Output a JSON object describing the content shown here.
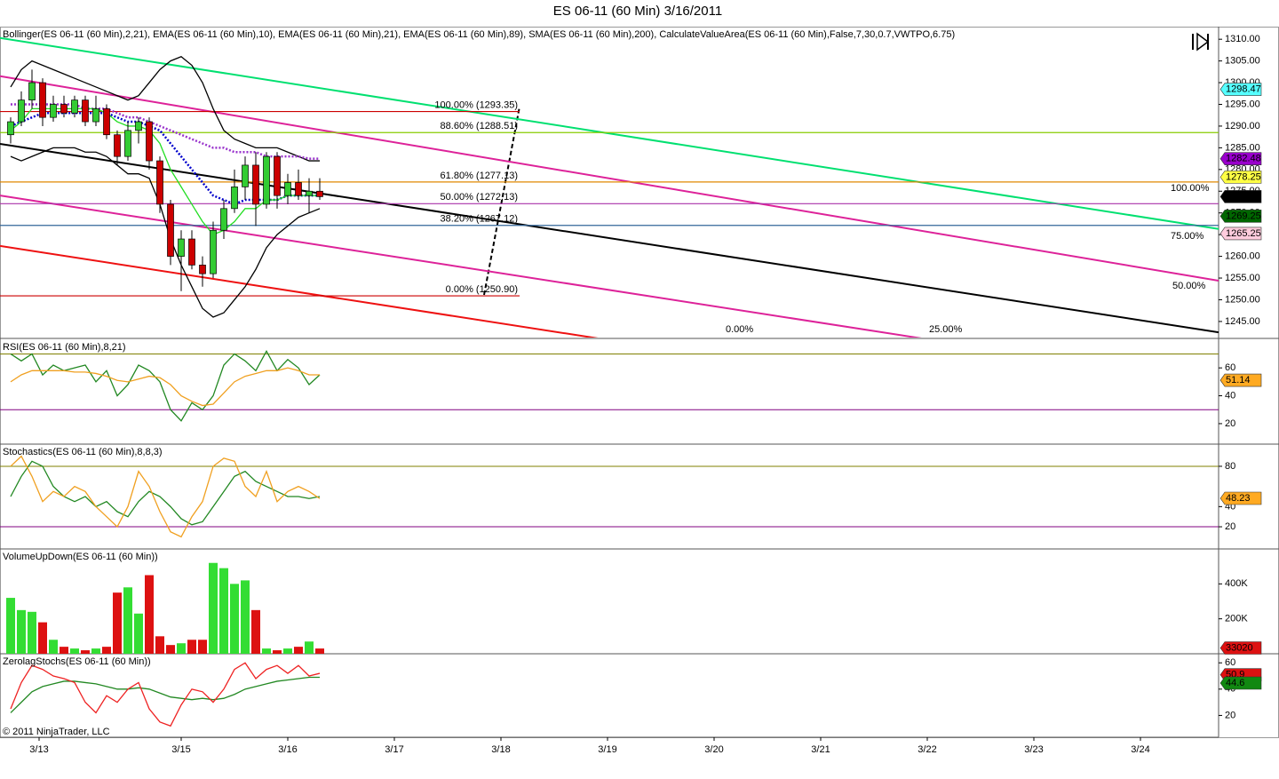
{
  "chart_data": [
    {
      "type": "candlestick",
      "title": "ES 06-11 (60 Min)  3/16/2011",
      "label": "Bollinger(ES 06-11 (60 Min),2,21), EMA(ES 06-11 (60 Min),10), EMA(ES 06-11 (60 Min),21), EMA(ES 06-11 (60 Min),89), SMA(ES 06-11 (60 Min),200), CalculateValueArea(ES 06-11 (60 Min),False,7,30,0.7,VWTPO,6.75)",
      "ylim": [
        1241.3,
        1312.9
      ],
      "yticks": [
        {
          "value": 1245,
          "label": "1245.00"
        },
        {
          "value": 1250,
          "label": "1250.00"
        },
        {
          "value": 1255,
          "label": "1255.00"
        },
        {
          "value": 1260,
          "label": "1260.00"
        },
        {
          "value": 1265,
          "label": "1265.00"
        },
        {
          "value": 1270,
          "label": "1270.00"
        },
        {
          "value": 1275,
          "label": "1275.00"
        },
        {
          "value": 1280,
          "label": "1280.00"
        },
        {
          "value": 1285,
          "label": "1285.00"
        },
        {
          "value": 1290,
          "label": "1290.00"
        },
        {
          "value": 1295,
          "label": "1295.00"
        },
        {
          "value": 1300,
          "label": "1300.00"
        },
        {
          "value": 1305,
          "label": "1305.00"
        },
        {
          "value": 1310,
          "label": "1310.00"
        }
      ],
      "up_color": "#33cc33",
      "down_color": "#cc0000",
      "open": [
        1288,
        1291,
        1296,
        1300,
        1292,
        1295,
        1293,
        1296,
        1291,
        1294,
        1288,
        1283,
        1289,
        1291,
        1282,
        1272,
        1260,
        1264,
        1258,
        1256,
        1266,
        1271,
        1276,
        1281,
        1272,
        1283,
        1274,
        1277,
        1274,
        1275
      ],
      "high": [
        1292,
        1298,
        1303,
        1301,
        1297,
        1297,
        1297,
        1297,
        1297,
        1295,
        1289,
        1291,
        1292,
        1292,
        1283,
        1273,
        1266,
        1266,
        1260,
        1268,
        1273,
        1280,
        1283,
        1284,
        1284,
        1284,
        1279,
        1280,
        1278,
        1278
      ],
      "low": [
        1286,
        1290,
        1294,
        1290,
        1291,
        1292,
        1292,
        1290,
        1290,
        1287,
        1281,
        1282,
        1286,
        1280,
        1270,
        1258,
        1252,
        1257,
        1253,
        1255,
        1264,
        1270,
        1273,
        1267,
        1271,
        1271,
        1272,
        1273,
        1270,
        1273
      ],
      "close": [
        1291,
        1296,
        1300,
        1292,
        1295,
        1293,
        1296,
        1291,
        1294,
        1288,
        1283,
        1289,
        1291,
        1282,
        1272,
        1260,
        1264,
        1258,
        1256,
        1266,
        1271,
        1276,
        1281,
        1272,
        1283,
        1274,
        1277,
        1274,
        1275,
        1273.75
      ],
      "series": [
        {
          "color": "#000000",
          "values": [
            1299,
            1303,
            1305,
            1304,
            1303,
            1302,
            1301,
            1300,
            1299,
            1298,
            1297,
            1296,
            1297,
            1300,
            1303,
            1305,
            1306,
            1304,
            1300,
            1294,
            1289,
            1287,
            1286,
            1285,
            1285,
            1285,
            1284,
            1283,
            1282,
            1282
          ]
        },
        {
          "color": "#000000",
          "values": [
            1283,
            1282,
            1283,
            1284,
            1285,
            1285,
            1285,
            1284,
            1284,
            1283,
            1281,
            1279,
            1279,
            1278,
            1272,
            1264,
            1258,
            1253,
            1248,
            1246,
            1247,
            1250,
            1253,
            1257,
            1262,
            1265,
            1267,
            1269,
            1270,
            1271
          ]
        },
        {
          "color": "#9933cc",
          "dash": true,
          "values": [
            1295,
            1295,
            1295,
            1295,
            1295,
            1295,
            1295,
            1294,
            1294,
            1294,
            1293,
            1292,
            1292,
            1291,
            1290,
            1289,
            1288,
            1287,
            1286,
            1285,
            1285,
            1284,
            1284,
            1284,
            1283,
            1283,
            1283,
            1283,
            1282.5,
            1282.5
          ]
        },
        {
          "color": "#0000cc",
          "dash": true,
          "values": [
            1290,
            1291,
            1292,
            1293,
            1293,
            1293,
            1293,
            1293,
            1293,
            1293,
            1292,
            1291,
            1291,
            1290,
            1289,
            1286,
            1283,
            1280,
            1277,
            1274,
            1273,
            1272,
            1273,
            1273,
            1273,
            1273,
            1274,
            1274,
            1274,
            1274
          ]
        },
        {
          "color": "#22dd22",
          "values": [
            1289,
            1291,
            1294,
            1294,
            1294,
            1294,
            1294,
            1294,
            1294,
            1293,
            1291,
            1290,
            1290,
            1289,
            1286,
            1280,
            1276,
            1272,
            1268,
            1265,
            1266,
            1268,
            1271,
            1271,
            1273,
            1273,
            1274,
            1274,
            1274,
            1274
          ]
        }
      ],
      "fib_levels": [
        {
          "label": "100.00% (1293.35)",
          "value": 1293.35,
          "color": "#cc0000",
          "extend": false
        },
        {
          "label": "88.60% (1288.51)",
          "value": 1288.51,
          "color": "#88cc00",
          "extend": true
        },
        {
          "label": "61.80% (1277.13)",
          "value": 1277.13,
          "color": "#e08800",
          "extend": true
        },
        {
          "label": "50.00% (1272.13)",
          "value": 1272.13,
          "color": "#aa33aa",
          "extend": true
        },
        {
          "label": "38.20% (1267.12)",
          "value": 1267.12,
          "color": "#336699",
          "extend": true
        },
        {
          "label": "0.00% (1250.90)",
          "value": 1250.9,
          "color": "#cc0000",
          "extend": false
        }
      ],
      "trendlines": [
        {
          "label": "100.00%",
          "from": 1310.3,
          "to": 1266.3,
          "color": "#00e070"
        },
        {
          "label": "75.00%",
          "from": 1301.5,
          "to": 1254.4,
          "color": "#dd2299"
        },
        {
          "label": "50.00%",
          "from": 1285.9,
          "to": 1242.5,
          "color": "#000000"
        },
        {
          "label": "25.00%",
          "from": 1274.0,
          "to": 1230.5,
          "color": "#dd2299"
        },
        {
          "label": "0.00%",
          "from": 1262.4,
          "to": 1219.0,
          "color": "#ee1111"
        }
      ],
      "price_markers": [
        {
          "value": 1298.47,
          "color": "#55ffff",
          "text_color": "#000000"
        },
        {
          "value": 1282.48,
          "color": "#9900cc",
          "text_color": "#ffffff"
        },
        {
          "value": 1278.25,
          "color": "#ffff44",
          "text_color": "#000000"
        },
        {
          "value": 1273.75,
          "color": "#000000",
          "text_color": "#ffffff"
        },
        {
          "value": 1269.25,
          "color": "#006600",
          "text_color": "#ffffff"
        },
        {
          "value": 1265.25,
          "color": "#ffccdd",
          "text_color": "#000000"
        }
      ]
    },
    {
      "type": "line",
      "label": "RSI(ES 06-11 (60 Min),8,21)",
      "ylim": [
        5.3,
        80.5
      ],
      "yticks": [
        20,
        40,
        60
      ],
      "hlines": [
        {
          "value": 70,
          "color": "#808000"
        },
        {
          "value": 30,
          "color": "#800080"
        }
      ],
      "series": [
        {
          "color": "#228822",
          "values": [
            70,
            65,
            70,
            55,
            62,
            58,
            60,
            62,
            50,
            58,
            40,
            48,
            62,
            58,
            50,
            30,
            22,
            35,
            30,
            40,
            62,
            70,
            65,
            58,
            72,
            58,
            66,
            60,
            48,
            55
          ]
        },
        {
          "color": "#f0a020",
          "values": [
            50,
            55,
            58,
            58,
            58,
            58,
            57,
            57,
            56,
            54,
            51,
            50,
            52,
            54,
            53,
            48,
            40,
            36,
            33,
            34,
            42,
            50,
            54,
            56,
            58,
            58,
            60,
            58,
            55,
            55
          ]
        }
      ],
      "price_markers": [
        {
          "value": 51.14,
          "color": "#ffaa22",
          "text_color": "#000000"
        }
      ]
    },
    {
      "type": "line",
      "label": "Stochastics(ES 06-11 (60 Min),8,8,3)",
      "ylim": [
        -2,
        102
      ],
      "yticks": [
        20,
        40,
        80
      ],
      "hlines": [
        {
          "value": 80,
          "color": "#808000"
        },
        {
          "value": 20,
          "color": "#800080"
        }
      ],
      "series": [
        {
          "color": "#228822",
          "values": [
            50,
            70,
            85,
            80,
            60,
            50,
            45,
            50,
            40,
            45,
            35,
            30,
            45,
            55,
            50,
            40,
            28,
            22,
            25,
            40,
            55,
            70,
            75,
            65,
            60,
            55,
            50,
            50,
            48,
            50
          ]
        },
        {
          "color": "#f0a020",
          "values": [
            80,
            90,
            70,
            45,
            55,
            50,
            60,
            55,
            40,
            30,
            20,
            40,
            75,
            60,
            35,
            15,
            10,
            30,
            45,
            80,
            88,
            85,
            60,
            50,
            75,
            45,
            55,
            60,
            55,
            48
          ]
        }
      ],
      "price_markers": [
        {
          "value": 48.23,
          "color": "#ffaa22",
          "text_color": "#000000"
        }
      ]
    },
    {
      "type": "bar",
      "label": "VolumeUpDown(ES 06-11 (60 Min))",
      "ylim": [
        0,
        600000
      ],
      "yticks": [
        {
          "value": 200000,
          "label": "200K"
        },
        {
          "value": 400000,
          "label": "400K"
        }
      ],
      "values": [
        320000,
        250000,
        240000,
        180000,
        80000,
        40000,
        30000,
        20000,
        30000,
        40000,
        350000,
        380000,
        230000,
        450000,
        100000,
        50000,
        60000,
        80000,
        80000,
        520000,
        490000,
        400000,
        420000,
        250000,
        30000,
        20000,
        30000,
        40000,
        70000,
        30000
      ],
      "colors": [
        "#33dd33",
        "#33dd33",
        "#33dd33",
        "#dd1111",
        "#33dd33",
        "#dd1111",
        "#33dd33",
        "#dd1111",
        "#33dd33",
        "#dd1111",
        "#dd1111",
        "#33dd33",
        "#33dd33",
        "#dd1111",
        "#dd1111",
        "#dd1111",
        "#33dd33",
        "#dd1111",
        "#dd1111",
        "#33dd33",
        "#33dd33",
        "#33dd33",
        "#33dd33",
        "#dd1111",
        "#33dd33",
        "#dd1111",
        "#33dd33",
        "#dd1111",
        "#33dd33",
        "#dd1111"
      ],
      "price_markers": [
        {
          "value": 33020,
          "color": "#dd1111",
          "text_color": "#ffffff"
        }
      ]
    },
    {
      "type": "line",
      "label": "ZerolagStochs(ES 06-11 (60 Min))",
      "ylim": [
        3.4,
        66.9
      ],
      "yticks": [
        20,
        40,
        60
      ],
      "series": [
        {
          "color": "#228822",
          "values": [
            22,
            30,
            38,
            42,
            44,
            46,
            46,
            45,
            44,
            42,
            40,
            40,
            41,
            40,
            37,
            34,
            33,
            32,
            33,
            32,
            33,
            36,
            40,
            42,
            44,
            46,
            47,
            48,
            49,
            49
          ]
        },
        {
          "color": "#ee2222",
          "values": [
            25,
            45,
            58,
            55,
            50,
            48,
            45,
            30,
            22,
            35,
            30,
            40,
            45,
            25,
            15,
            12,
            28,
            40,
            38,
            30,
            40,
            55,
            60,
            48,
            55,
            58,
            52,
            58,
            50,
            52
          ]
        }
      ],
      "price_markers": [
        {
          "value": 50.9,
          "color": "#dd1111",
          "text_color": "#000000"
        },
        {
          "value": 44.6,
          "color": "#118811",
          "text_color": "#ffffff"
        }
      ],
      "annotation": "© 2011 NinjaTrader, LLC",
      "date_labels": [
        "3/13",
        "3/15",
        "3/16",
        "3/17",
        "3/18",
        "3/19",
        "3/20",
        "3/21",
        "3/22",
        "3/23",
        "3/24"
      ]
    }
  ]
}
